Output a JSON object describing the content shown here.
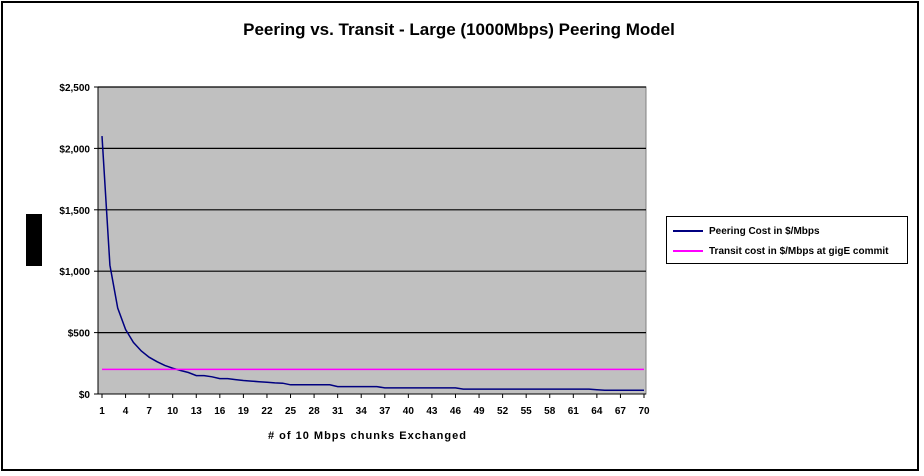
{
  "chart_data": {
    "type": "line",
    "title": "Peering vs. Transit - Large (1000Mbps) Peering Model",
    "xlabel": "# of 10 Mbps chunks Exchanged",
    "ylabel": "",
    "ylim": [
      0,
      2500
    ],
    "xlim": [
      1,
      70
    ],
    "y_ticks": [
      "$0",
      "$500",
      "$1,000",
      "$1,500",
      "$2,000",
      "$2,500"
    ],
    "y_tick_values": [
      0,
      500,
      1000,
      1500,
      2000,
      2500
    ],
    "x_ticks": [
      1,
      4,
      7,
      10,
      13,
      16,
      19,
      22,
      25,
      28,
      31,
      34,
      37,
      40,
      43,
      46,
      49,
      52,
      55,
      58,
      61,
      64,
      67,
      70
    ],
    "grid": true,
    "legend_position": "right",
    "plot_background": "#c0c0c0",
    "series": [
      {
        "name": "Peering Cost in $/Mbps",
        "color": "#000080",
        "x": [
          1,
          2,
          3,
          4,
          5,
          6,
          7,
          8,
          9,
          10,
          11,
          12,
          13,
          14,
          15,
          16,
          17,
          18,
          19,
          20,
          21,
          22,
          23,
          24,
          25,
          26,
          27,
          28,
          29,
          30,
          31,
          32,
          33,
          34,
          35,
          36,
          37,
          38,
          39,
          40,
          41,
          42,
          43,
          44,
          45,
          46,
          47,
          48,
          49,
          50,
          51,
          52,
          53,
          54,
          55,
          56,
          57,
          58,
          59,
          60,
          61,
          62,
          63,
          64,
          65,
          66,
          67,
          68,
          69,
          70
        ],
        "values": [
          2100,
          1050,
          700,
          525,
          420,
          350,
          300,
          263,
          233,
          210,
          191,
          175,
          150,
          150,
          140,
          125,
          125,
          117,
          110,
          105,
          100,
          95,
          90,
          88,
          75,
          75,
          75,
          75,
          75,
          75,
          60,
          60,
          60,
          60,
          60,
          60,
          50,
          50,
          50,
          50,
          50,
          50,
          50,
          50,
          50,
          50,
          40,
          40,
          40,
          40,
          40,
          40,
          40,
          40,
          40,
          40,
          40,
          40,
          40,
          40,
          40,
          40,
          40,
          35,
          30,
          30,
          30,
          30,
          30,
          30
        ]
      },
      {
        "name": "Transit cost in $/Mbps at gigE commit",
        "color": "#ff00ff",
        "x": [
          1,
          70
        ],
        "values": [
          200,
          200
        ]
      }
    ]
  }
}
